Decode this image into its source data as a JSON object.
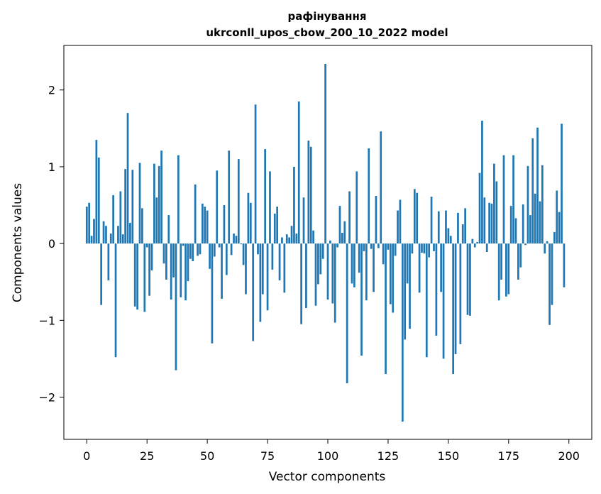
{
  "chart_data": {
    "type": "bar",
    "title_line1": "рафінування",
    "title_line2": "ukrconll_upos_cbow_200_10_2022 model",
    "xlabel": "Vector components",
    "ylabel": "Components values",
    "xlim": [
      -9.5,
      209.5
    ],
    "ylim": [
      -2.55,
      2.58
    ],
    "xticks": [
      0,
      25,
      50,
      75,
      100,
      125,
      150,
      175,
      200
    ],
    "yticks": [
      -2,
      -1,
      0,
      1,
      2
    ],
    "ytick_labels": [
      "−2",
      "−1",
      "0",
      "1",
      "2"
    ],
    "bar_color": "#1f77b4",
    "grid": false,
    "values": [
      0.48,
      0.53,
      0.1,
      0.32,
      1.35,
      1.12,
      -0.8,
      0.29,
      0.23,
      -0.48,
      0.13,
      0.63,
      -1.48,
      0.23,
      0.68,
      0.12,
      0.97,
      1.7,
      0.27,
      0.96,
      -0.82,
      -0.86,
      1.05,
      0.46,
      -0.89,
      -0.05,
      -0.68,
      -0.35,
      1.04,
      0.6,
      1.01,
      1.21,
      -0.26,
      -0.47,
      0.37,
      -0.73,
      -0.44,
      -1.65,
      1.15,
      -0.7,
      -0.03,
      -0.74,
      -0.49,
      -0.2,
      -0.23,
      0.77,
      -0.16,
      -0.14,
      0.52,
      0.48,
      0.43,
      -0.33,
      -1.3,
      -0.17,
      0.95,
      -0.05,
      -0.72,
      0.5,
      -0.41,
      1.21,
      -0.15,
      0.13,
      0.1,
      1.1,
      -0.01,
      -0.28,
      -0.66,
      0.66,
      0.53,
      -1.27,
      1.81,
      -0.14,
      -1.02,
      -0.66,
      1.23,
      -0.87,
      0.94,
      -0.34,
      0.39,
      0.48,
      -0.48,
      0.08,
      -0.64,
      0.12,
      0.08,
      0.23,
      1.0,
      0.13,
      1.85,
      -1.05,
      0.6,
      -0.84,
      1.34,
      1.26,
      0.17,
      -0.81,
      -0.53,
      -0.4,
      -0.2,
      2.34,
      -0.73,
      0.04,
      -0.78,
      -1.03,
      -0.05,
      0.49,
      0.14,
      0.29,
      -1.82,
      0.68,
      -0.52,
      -0.57,
      0.94,
      -0.38,
      -1.46,
      -0.1,
      -0.74,
      1.24,
      -0.07,
      -0.63,
      0.62,
      -0.06,
      1.46,
      -0.27,
      -1.7,
      -0.08,
      -0.79,
      -0.9,
      -0.16,
      0.43,
      0.57,
      -2.32,
      -1.25,
      -0.52,
      -1.11,
      -0.13,
      0.71,
      0.66,
      -0.64,
      -0.12,
      -0.13,
      -1.48,
      -0.18,
      0.61,
      -0.1,
      -1.2,
      0.42,
      -0.63,
      -1.5,
      0.43,
      0.2,
      0.1,
      -1.7,
      -1.44,
      0.4,
      -1.31,
      0.25,
      0.46,
      -0.93,
      -0.94,
      0.06,
      -0.05,
      0.02,
      0.92,
      1.6,
      0.6,
      -0.11,
      0.53,
      0.52,
      1.04,
      0.81,
      -0.74,
      -0.47,
      1.15,
      -0.69,
      -0.66,
      0.49,
      1.15,
      0.33,
      -0.47,
      -0.31,
      0.51,
      -0.02,
      1.01,
      0.37,
      1.37,
      0.65,
      1.51,
      0.55,
      1.02,
      -0.13,
      0.03,
      -1.06,
      -0.8,
      0.15,
      0.69,
      0.41,
      1.56,
      -0.57
    ]
  }
}
